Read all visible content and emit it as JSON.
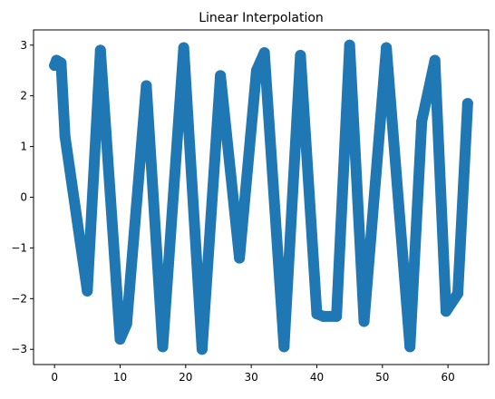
{
  "chart_data": {
    "type": "line",
    "title": "Linear Interpolation",
    "xlabel": "",
    "ylabel": "",
    "xlim": [
      -3.2,
      66.2
    ],
    "ylim": [
      -3.3,
      3.3
    ],
    "xticks": [
      0,
      10,
      20,
      30,
      40,
      50,
      60
    ],
    "xtick_labels": [
      "0",
      "10",
      "20",
      "30",
      "40",
      "50",
      "60"
    ],
    "yticks": [
      -3,
      -2,
      -1,
      0,
      1,
      2,
      3
    ],
    "ytick_labels": [
      "−3",
      "−2",
      "−1",
      "0",
      "1",
      "2",
      "3"
    ],
    "grid": false,
    "legend": false,
    "series": [
      {
        "color": "#1f77b4",
        "marker": "circle",
        "x": [
          0,
          0.3,
          1,
          1.6,
          5,
          7,
          10,
          11,
          14,
          16.5,
          19.7,
          22.5,
          25.3,
          28.2,
          30.8,
          32,
          35,
          37.5,
          40,
          41,
          43,
          45,
          47.2,
          50.6,
          54.2,
          56,
          58,
          59.7,
          61.5,
          63
        ],
        "y": [
          2.6,
          2.7,
          2.65,
          1.2,
          -1.85,
          2.9,
          -2.8,
          -2.5,
          2.2,
          -2.95,
          2.95,
          -3.0,
          2.4,
          -1.2,
          2.5,
          2.85,
          -2.95,
          2.8,
          -2.3,
          -2.35,
          -2.35,
          3.0,
          -2.45,
          2.95,
          -2.95,
          1.5,
          2.7,
          -2.25,
          -1.9,
          1.85
        ]
      }
    ]
  }
}
